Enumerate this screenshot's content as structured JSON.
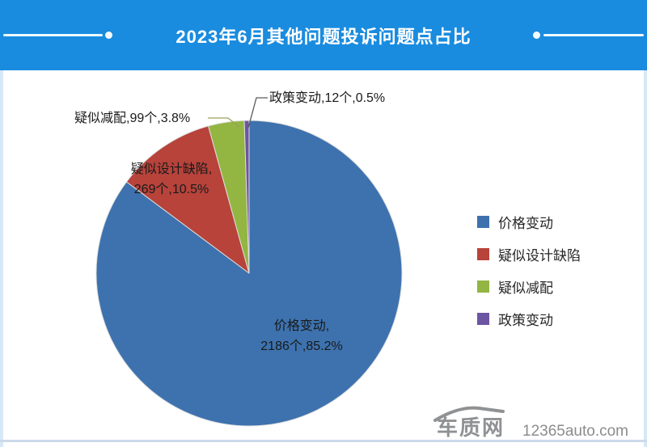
{
  "header": {
    "title": "2023年6月其他问题投诉问题点占比"
  },
  "chart_data": {
    "type": "pie",
    "title": "2023年6月其他问题投诉问题点占比",
    "unit": "个",
    "start_angle_deg": 0,
    "direction": "clockwise",
    "legend_position": "right",
    "series": [
      {
        "name": "价格变动",
        "count": 2186,
        "percent": 85.2,
        "color": "#3d72ae"
      },
      {
        "name": "疑似设计缺陷",
        "count": 269,
        "percent": 10.5,
        "color": "#b7433b"
      },
      {
        "name": "疑似减配",
        "count": 99,
        "percent": 3.8,
        "color": "#93b542"
      },
      {
        "name": "政策变动",
        "count": 12,
        "percent": 0.5,
        "color": "#6c55a2"
      }
    ]
  },
  "labels": {
    "policy": "政策变动,12个,0.5%",
    "reduction": "疑似减配,99个,3.8%",
    "design_line1": "疑似设计缺陷,",
    "design_line2": "269个,10.5%",
    "price_line1": "价格变动,",
    "price_line2": "2186个,85.2%"
  },
  "watermark": {
    "logo_text": "车质网",
    "site_text": "12365auto.com"
  }
}
